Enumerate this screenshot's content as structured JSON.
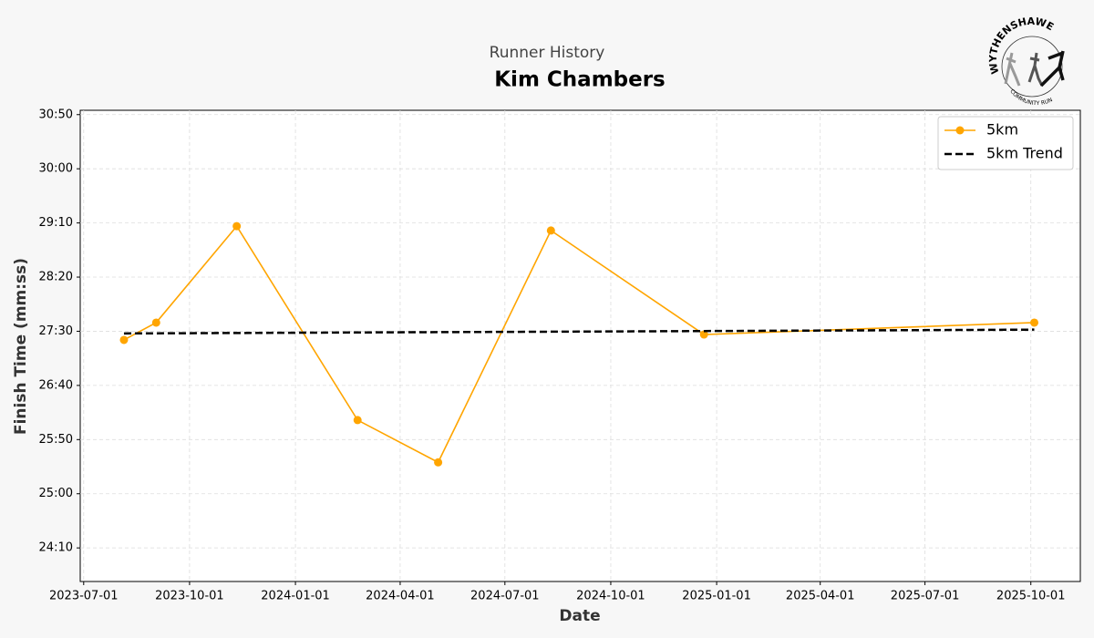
{
  "chart_data": {
    "type": "line",
    "subtitle": "Runner History",
    "title": "Kim Chambers",
    "x_label": "Date",
    "y_label": "Finish Time (mm:ss)",
    "x": [
      "2023-08-05",
      "2023-09-02",
      "2023-11-11",
      "2024-02-24",
      "2024-05-04",
      "2024-08-10",
      "2024-12-21",
      "2025-10-04"
    ],
    "series": [
      {
        "name": "5km",
        "color": "#ffa500",
        "linestyle": "solid",
        "marker": "o",
        "values": [
          1642,
          1658,
          1747,
          1568,
          1529,
          1743,
          1647,
          1658
        ]
      },
      {
        "name": "5km Trend",
        "color": "#000000",
        "linestyle": "dashed",
        "values": [
          1648,
          1648.1,
          1648.4,
          1648.9,
          1649.2,
          1649.6,
          1650.2,
          1651.5
        ]
      }
    ],
    "xlim": [
      "2023-06-28",
      "2025-11-13"
    ],
    "xticks": [
      "2023-07-01",
      "2023-10-01",
      "2024-01-01",
      "2024-04-01",
      "2024-07-01",
      "2024-10-01",
      "2025-01-01",
      "2025-04-01",
      "2025-07-01",
      "2025-10-01"
    ],
    "ylim": [
      1419,
      1854
    ],
    "yticks": [
      {
        "value": 1450,
        "label": "24:10"
      },
      {
        "value": 1500,
        "label": "25:00"
      },
      {
        "value": 1550,
        "label": "25:50"
      },
      {
        "value": 1600,
        "label": "26:40"
      },
      {
        "value": 1650,
        "label": "27:30"
      },
      {
        "value": 1700,
        "label": "28:20"
      },
      {
        "value": 1750,
        "label": "29:10"
      },
      {
        "value": 1800,
        "label": "30:00"
      },
      {
        "value": 1850,
        "label": "30:50"
      }
    ],
    "grid": true,
    "legend": "upper right",
    "logo": {
      "top": "WYTHENSHAWE",
      "bottom": "COMMUNITY RUN"
    }
  }
}
